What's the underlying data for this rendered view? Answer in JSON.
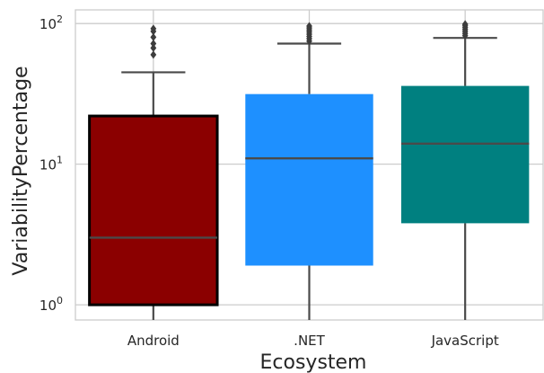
{
  "chart_data": {
    "type": "box",
    "title": "",
    "xlabel": "Ecosystem",
    "ylabel": "VariabilityPercentage",
    "y_scale": "log",
    "ylim": [
      0.78,
      125
    ],
    "grid": true,
    "categories": [
      "Android",
      ".NET",
      "JavaScript"
    ],
    "y_ticks": [
      {
        "value": 1,
        "base": "10",
        "exp": "0"
      },
      {
        "value": 10,
        "base": "10",
        "exp": "1"
      },
      {
        "value": 100,
        "base": "10",
        "exp": "2"
      }
    ],
    "boxes": [
      {
        "category": "Android",
        "color": "#8b0000",
        "outline": "#000000",
        "whisker_low": 0.78,
        "q1": 1.0,
        "median": 3.0,
        "q3": 22.0,
        "whisker_high": 45.0,
        "outliers": [
          60,
          67,
          72,
          80,
          88,
          92
        ]
      },
      {
        "category": ".NET",
        "color": "#1e90ff",
        "outline": "#4a4a4a",
        "whisker_low": 0.78,
        "q1": 1.9,
        "median": 11.0,
        "q3": 31.5,
        "whisker_high": 72.0,
        "outliers": [
          75,
          78,
          81,
          84,
          87,
          90,
          93,
          96
        ]
      },
      {
        "category": "JavaScript",
        "color": "#008080",
        "outline": "#4a4a4a",
        "whisker_low": 0.78,
        "q1": 3.8,
        "median": 14.0,
        "q3": 36.0,
        "whisker_high": 79.0,
        "outliers": [
          82,
          85,
          88,
          91,
          94,
          97,
          99
        ]
      }
    ]
  }
}
